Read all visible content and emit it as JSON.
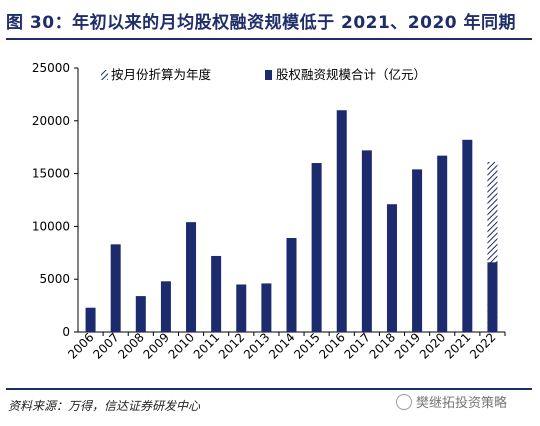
{
  "title": "图 30：年初以来的月均股权融资规模低于 2021、2020 年同期",
  "source": "资料来源：万得，信达证券研发中心",
  "watermark": "樊继拓投资策略",
  "colors": {
    "bar": "#1c2a6e",
    "title": "#1f2d6b"
  },
  "chart_data": {
    "type": "bar",
    "categories": [
      "2006",
      "2007",
      "2008",
      "2009",
      "2010",
      "2011",
      "2012",
      "2013",
      "2014",
      "2015",
      "2016",
      "2017",
      "2018",
      "2019",
      "2020",
      "2021",
      "2022"
    ],
    "series": [
      {
        "name": "股权融资规模合计（亿元）",
        "values": [
          2300,
          8300,
          3400,
          4800,
          10400,
          7200,
          4500,
          4600,
          8900,
          16000,
          21000,
          17200,
          12100,
          15400,
          16700,
          18200,
          6600
        ]
      },
      {
        "name": "按月份折算为年度",
        "values": [
          null,
          null,
          null,
          null,
          null,
          null,
          null,
          null,
          null,
          null,
          null,
          null,
          null,
          null,
          null,
          null,
          16100
        ]
      }
    ],
    "ylim": [
      0,
      25000
    ],
    "yticks": [
      0,
      5000,
      10000,
      15000,
      20000,
      25000
    ],
    "legend": "top-left",
    "grid": false
  }
}
